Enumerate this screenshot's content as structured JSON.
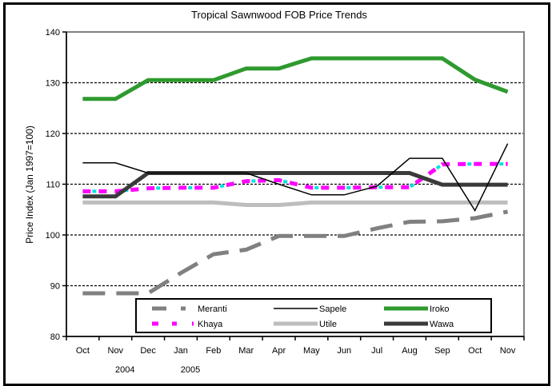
{
  "chart_data": {
    "type": "line",
    "title": "Tropical Sawnwood FOB Price Trends",
    "xlabel": "",
    "ylabel": "Price Index (Jan 1997=100)",
    "ylim": [
      80,
      140
    ],
    "yticks": [
      80,
      90,
      100,
      110,
      120,
      130,
      140
    ],
    "grid": "horizontal dashed",
    "categories": [
      "Oct",
      "Nov",
      "Dec",
      "Jan",
      "Feb",
      "Mar",
      "Apr",
      "May",
      "Jun",
      "Jul",
      "Aug",
      "Sep",
      "Oct",
      "Nov"
    ],
    "year_labels": [
      {
        "label": "2004",
        "category_index": 1
      },
      {
        "label": "2005",
        "category_index": 3
      }
    ],
    "legend_position": "bottom-inside",
    "series": [
      {
        "name": "Meranti",
        "color": "#808080",
        "style": "dashed",
        "values": [
          88.5,
          88.5,
          88.5,
          92.5,
          96.2,
          97.1,
          99.8,
          99.8,
          99.8,
          101.3,
          102.6,
          102.7,
          103.3,
          104.6
        ]
      },
      {
        "name": "Sapele",
        "color": "#000000",
        "style": "solid-thin",
        "values": [
          114.2,
          114.2,
          112.2,
          112.2,
          112.2,
          112.2,
          110.0,
          107.9,
          107.9,
          109.6,
          115.1,
          115.1,
          104.8,
          118.0
        ]
      },
      {
        "name": "Iroko",
        "color": "#2e9a2e",
        "style": "solid-thick",
        "values": [
          126.8,
          126.8,
          130.5,
          130.5,
          130.5,
          132.8,
          132.8,
          134.8,
          134.8,
          134.8,
          134.8,
          134.8,
          130.6,
          128.2
        ]
      },
      {
        "name": "Khaya",
        "color": "#ff00ff",
        "accent_color": "#00e0e0",
        "style": "dashed-mixed",
        "values": [
          108.6,
          108.6,
          109.2,
          109.3,
          109.3,
          110.6,
          110.8,
          109.3,
          109.3,
          109.4,
          109.4,
          113.9,
          114.0,
          114.0
        ]
      },
      {
        "name": "Utile",
        "color": "#bdbdbd",
        "style": "solid-thick",
        "values": [
          106.4,
          106.4,
          106.4,
          106.4,
          106.4,
          105.9,
          105.9,
          106.4,
          106.4,
          106.4,
          106.4,
          106.4,
          106.4,
          106.4
        ]
      },
      {
        "name": "Wawa",
        "color": "#3a3a3a",
        "style": "solid-thick",
        "values": [
          107.6,
          107.6,
          112.2,
          112.2,
          112.2,
          112.2,
          112.2,
          112.2,
          112.2,
          112.2,
          112.2,
          109.9,
          109.9,
          109.9
        ]
      }
    ]
  }
}
